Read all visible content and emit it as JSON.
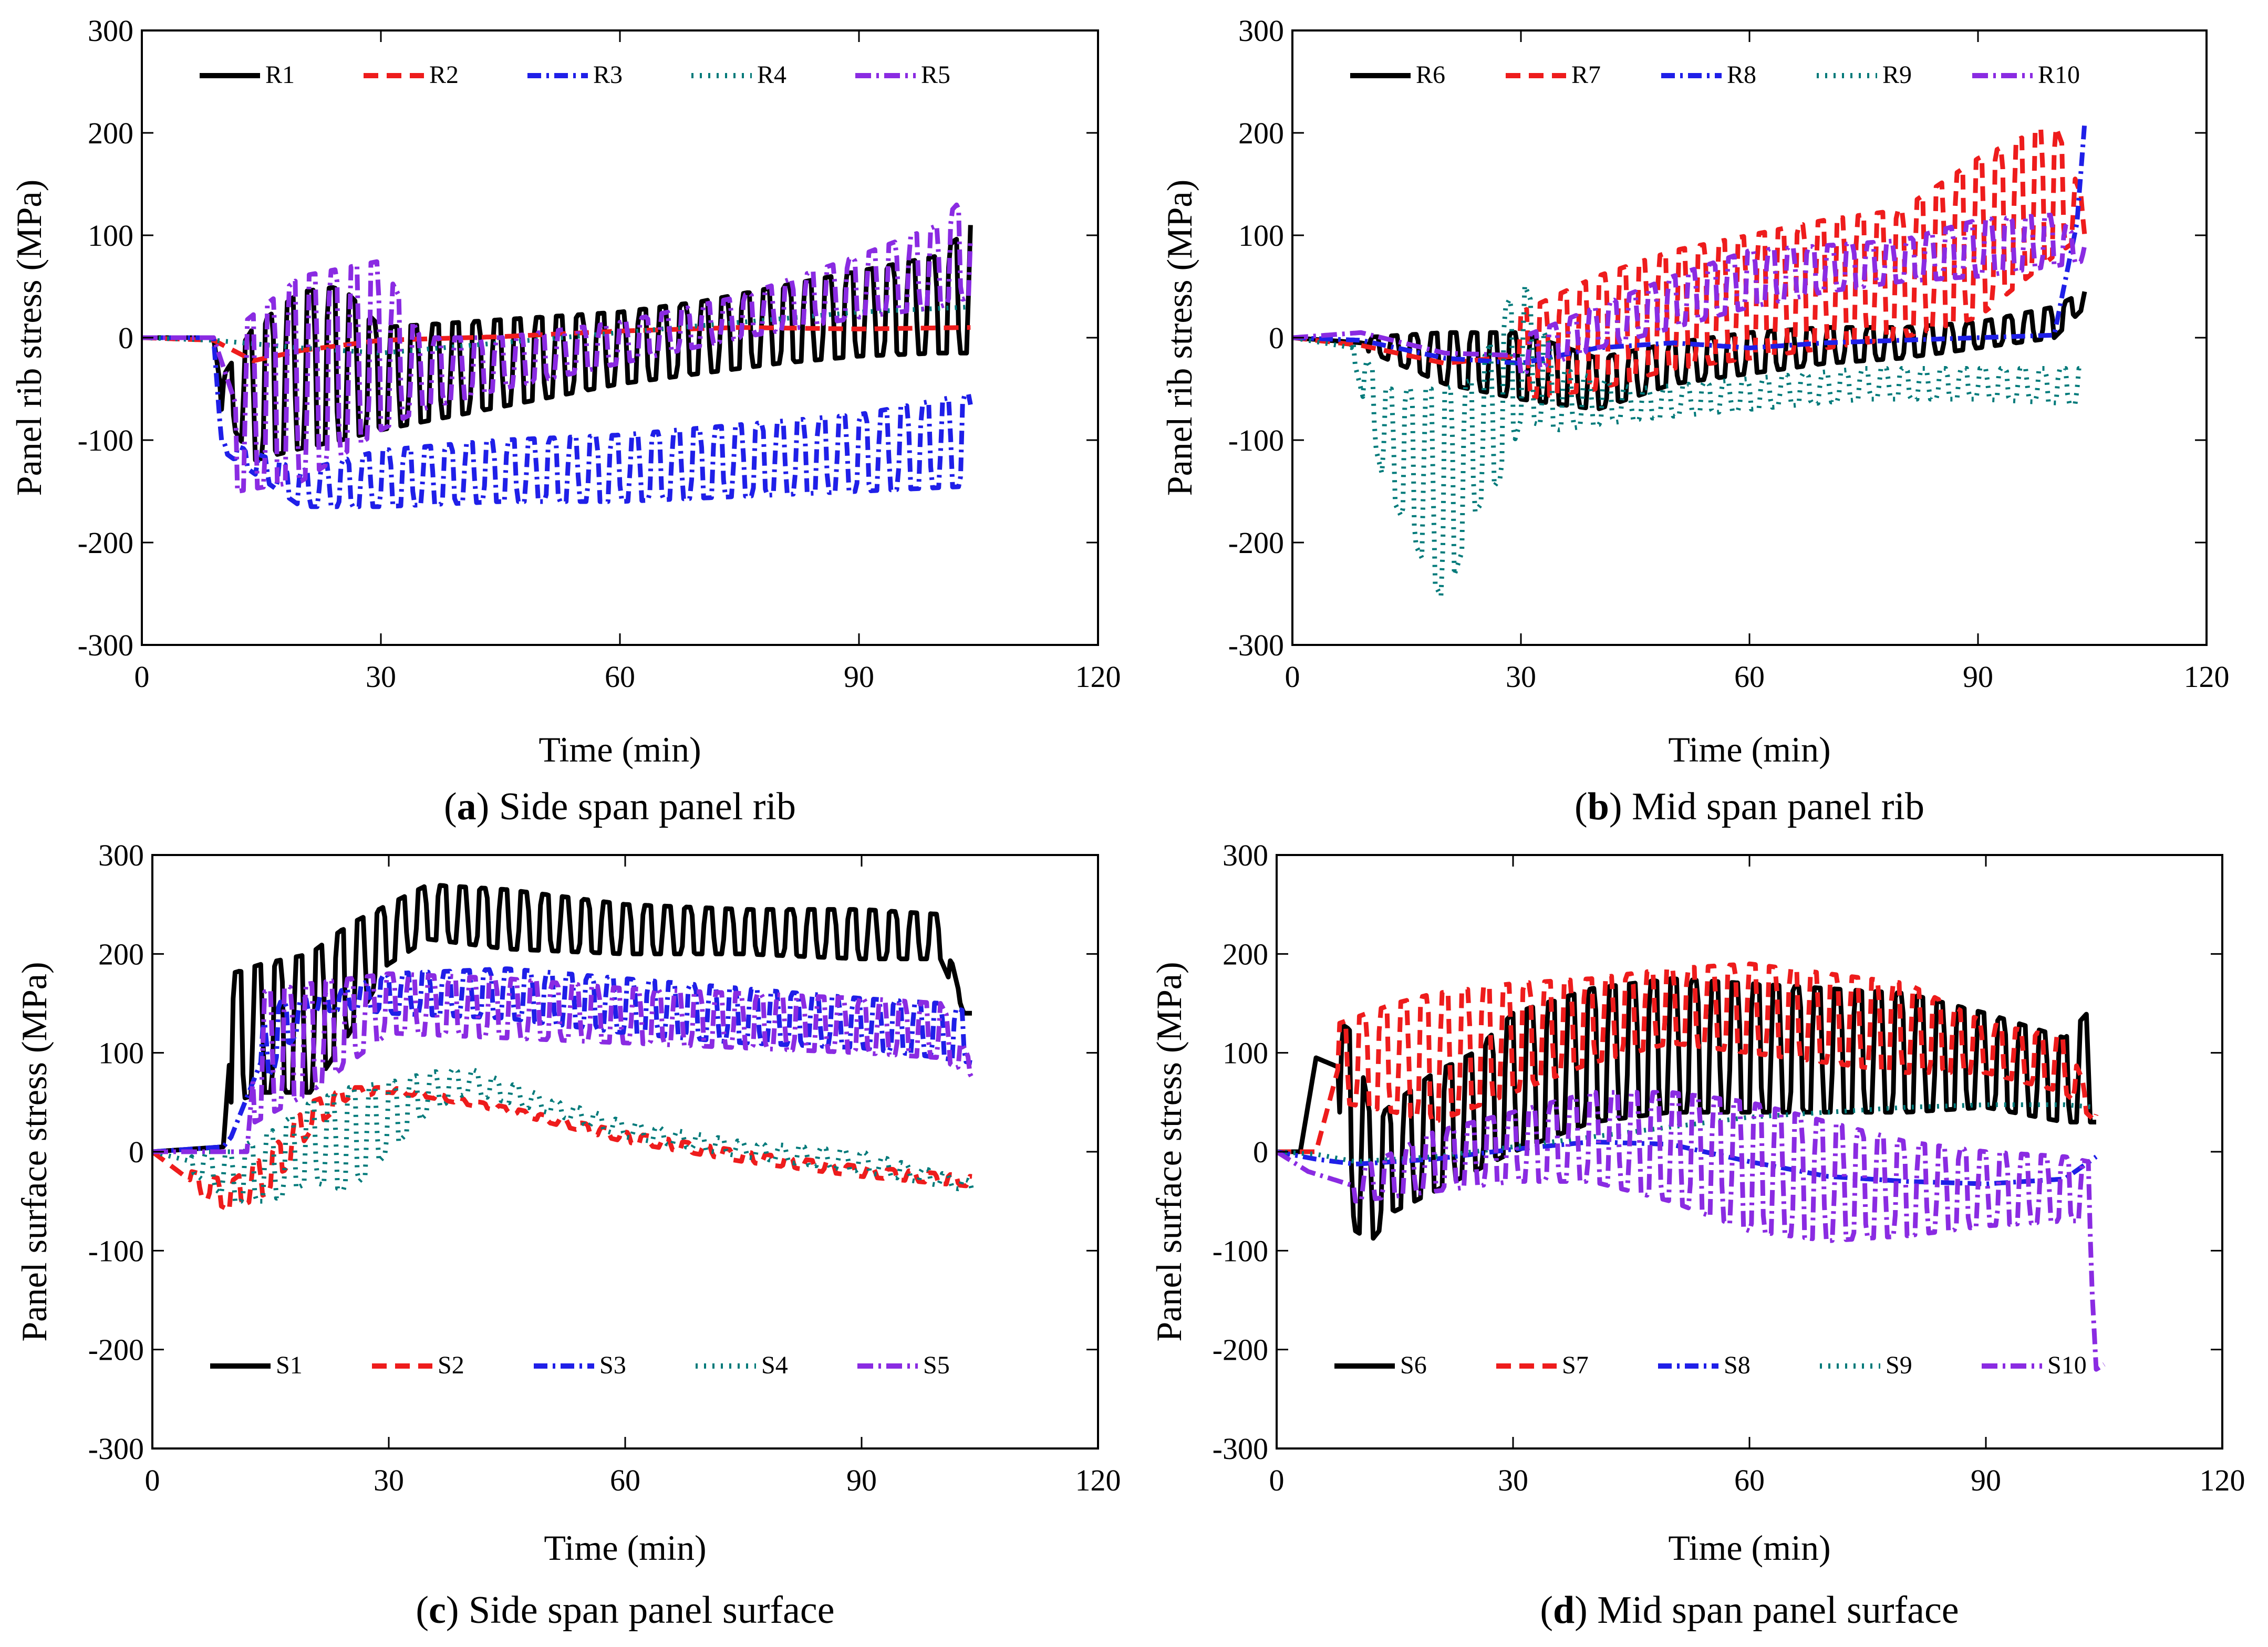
{
  "chart_data": [
    {
      "type": "line",
      "panel_id": "a",
      "caption_letter": "a",
      "caption_text": " Side span panel rib",
      "xlabel": "Time (min)",
      "ylabel": "Panel rib stress (MPa)",
      "xlim": [
        0,
        120
      ],
      "ylim": [
        -300,
        300
      ],
      "xticks": [
        0,
        30,
        60,
        90,
        120
      ],
      "yticks": [
        -300,
        -200,
        -100,
        0,
        100,
        200,
        300
      ],
      "legend_position": "top",
      "grid": false,
      "series": [
        {
          "name": "R1",
          "color": "#000000",
          "dash": "solid",
          "x": [
            0,
            9,
            10,
            14,
            20,
            25,
            30,
            40,
            50,
            60,
            70,
            80,
            90,
            100,
            104
          ],
          "base": [
            0,
            0,
            -70,
            -120,
            -108,
            -100,
            -90,
            -75,
            -60,
            -45,
            -35,
            -25,
            -18,
            -15,
            -15
          ],
          "peak": [
            0,
            0,
            -40,
            10,
            45,
            50,
            10,
            15,
            20,
            25,
            35,
            50,
            65,
            80,
            110
          ],
          "osc_start": 10
        },
        {
          "name": "R2",
          "color": "#ee1c1c",
          "dash": "28,16",
          "x": [
            0,
            9,
            14,
            20,
            30,
            45,
            60,
            75,
            90,
            104
          ],
          "base": [
            0,
            -5,
            -25,
            -15,
            -5,
            0,
            5,
            8,
            5,
            5
          ],
          "peak": [
            0,
            0,
            -20,
            -10,
            0,
            2,
            8,
            12,
            12,
            15
          ],
          "osc_start": 200
        },
        {
          "name": "R3",
          "color": "#1f1fe8",
          "dash": "26,10,5,10",
          "x": [
            0,
            9,
            10,
            20,
            30,
            45,
            60,
            75,
            90,
            104
          ],
          "base": [
            0,
            0,
            -110,
            -165,
            -165,
            -160,
            -160,
            -155,
            -150,
            -145
          ],
          "peak": [
            0,
            0,
            -100,
            -130,
            -110,
            -100,
            -95,
            -85,
            -75,
            -55
          ],
          "osc_start": 10
        },
        {
          "name": "R4",
          "color": "#007a7a",
          "dash": "4,12",
          "x": [
            0,
            9,
            20,
            30,
            45,
            60,
            75,
            90,
            104
          ],
          "base": [
            0,
            -5,
            -15,
            -20,
            -10,
            0,
            10,
            20,
            25
          ],
          "peak": [
            0,
            0,
            -5,
            -10,
            0,
            10,
            20,
            30,
            35
          ],
          "osc_start": 200
        },
        {
          "name": "R5",
          "color": "#8a2be2",
          "dash": "30,10,5,10",
          "x": [
            0,
            9,
            12,
            20,
            30,
            35,
            45,
            60,
            75,
            90,
            100,
            104
          ],
          "base": [
            0,
            0,
            -150,
            -140,
            -90,
            -70,
            -50,
            -25,
            0,
            20,
            30,
            40
          ],
          "peak": [
            0,
            0,
            10,
            60,
            75,
            0,
            0,
            15,
            40,
            80,
            110,
            145
          ],
          "osc_start": 12
        }
      ]
    },
    {
      "type": "line",
      "panel_id": "b",
      "caption_letter": "b",
      "caption_text": " Mid span panel rib",
      "xlabel": "Time (min)",
      "ylabel": "Panel rib stress (MPa)",
      "xlim": [
        0,
        120
      ],
      "ylim": [
        -300,
        300
      ],
      "xticks": [
        0,
        30,
        60,
        90,
        120
      ],
      "yticks": [
        -300,
        -200,
        -100,
        0,
        100,
        200,
        300
      ],
      "legend_position": "top",
      "grid": false,
      "series": [
        {
          "name": "R6",
          "color": "#000000",
          "dash": "solid",
          "x": [
            0,
            9,
            20,
            30,
            40,
            50,
            60,
            70,
            80,
            90,
            100,
            104
          ],
          "base": [
            0,
            -10,
            -45,
            -60,
            -70,
            -45,
            -35,
            -25,
            -20,
            -10,
            0,
            30
          ],
          "peak": [
            0,
            0,
            5,
            5,
            -20,
            -5,
            5,
            10,
            10,
            15,
            30,
            45
          ],
          "osc_start": 10
        },
        {
          "name": "R7",
          "color": "#ee1c1c",
          "dash": "28,16",
          "x": [
            0,
            9,
            20,
            30,
            40,
            50,
            60,
            70,
            80,
            90,
            100,
            104
          ],
          "base": [
            0,
            -15,
            -50,
            -60,
            -50,
            -30,
            -20,
            -10,
            0,
            20,
            80,
            100
          ],
          "peak": [
            0,
            0,
            0,
            25,
            60,
            85,
            100,
            115,
            125,
            175,
            210,
            130
          ],
          "osc_start": 30
        },
        {
          "name": "R8",
          "color": "#1f1fe8",
          "dash": "26,10,5,10",
          "x": [
            0,
            9,
            20,
            30,
            40,
            50,
            60,
            70,
            80,
            90,
            100,
            103,
            104
          ],
          "base": [
            0,
            -5,
            -25,
            -30,
            -20,
            -15,
            -20,
            -15,
            -10,
            -5,
            0,
            -10,
            210
          ],
          "peak": [
            0,
            0,
            -15,
            -20,
            0,
            5,
            0,
            5,
            5,
            5,
            5,
            235,
            210
          ],
          "osc_start": 200
        },
        {
          "name": "R9",
          "color": "#007a7a",
          "dash": "4,12",
          "x": [
            0,
            8,
            12,
            16,
            20,
            24,
            28,
            30,
            35,
            45,
            60,
            75,
            90,
            104
          ],
          "base": [
            0,
            -20,
            -140,
            -200,
            -260,
            -170,
            -130,
            -80,
            -90,
            -80,
            -70,
            -60,
            -60,
            -65
          ],
          "peak": [
            0,
            0,
            -50,
            -50,
            -50,
            -40,
            30,
            60,
            -30,
            -50,
            -40,
            -30,
            -30,
            -30
          ],
          "osc_start": 8
        },
        {
          "name": "R10",
          "color": "#8a2be2",
          "dash": "30,10,5,10",
          "x": [
            0,
            9,
            20,
            30,
            40,
            50,
            60,
            70,
            80,
            90,
            100,
            104
          ],
          "base": [
            0,
            0,
            -40,
            -35,
            -10,
            10,
            30,
            45,
            55,
            60,
            70,
            75
          ],
          "peak": [
            0,
            10,
            10,
            0,
            30,
            60,
            85,
            90,
            95,
            115,
            120,
            90
          ],
          "osc_start": 30
        }
      ]
    },
    {
      "type": "line",
      "panel_id": "c",
      "caption_letter": "c",
      "caption_text": " Side span panel surface",
      "xlabel": "Time (min)",
      "ylabel": "Panel surface stress (MPa)",
      "xlim": [
        0,
        120
      ],
      "ylim": [
        -300,
        300
      ],
      "xticks": [
        0,
        30,
        60,
        90,
        120
      ],
      "yticks": [
        -300,
        -200,
        -100,
        0,
        100,
        200,
        300
      ],
      "legend_position": "bottom",
      "grid": false,
      "series": [
        {
          "name": "S1",
          "color": "#000000",
          "dash": "solid",
          "x": [
            0,
            9,
            10,
            14,
            20,
            25,
            30,
            35,
            45,
            60,
            75,
            90,
            100,
            103,
            104
          ],
          "base": [
            0,
            5,
            50,
            60,
            60,
            120,
            190,
            215,
            205,
            200,
            200,
            195,
            195,
            140,
            140
          ],
          "peak": [
            0,
            5,
            180,
            190,
            200,
            230,
            250,
            270,
            265,
            250,
            245,
            245,
            240,
            140,
            140
          ],
          "osc_start": 10
        },
        {
          "name": "S2",
          "color": "#ee1c1c",
          "dash": "28,16",
          "x": [
            0,
            5,
            10,
            15,
            20,
            25,
            30,
            35,
            45,
            60,
            75,
            90,
            104
          ],
          "base": [
            0,
            -40,
            -60,
            -40,
            20,
            55,
            60,
            55,
            40,
            10,
            -10,
            -25,
            -35
          ],
          "peak": [
            0,
            -20,
            -30,
            0,
            50,
            65,
            65,
            60,
            45,
            20,
            0,
            -15,
            -25
          ],
          "osc_start": 5
        },
        {
          "name": "S3",
          "color": "#1f1fe8",
          "dash": "26,10,5,10",
          "x": [
            0,
            9,
            10,
            15,
            20,
            25,
            30,
            45,
            60,
            75,
            90,
            100,
            104
          ],
          "base": [
            0,
            5,
            10,
            80,
            140,
            145,
            140,
            135,
            120,
            110,
            105,
            95,
            90
          ],
          "peak": [
            0,
            5,
            20,
            150,
            155,
            165,
            180,
            185,
            175,
            165,
            155,
            150,
            140
          ],
          "osc_start": 14
        },
        {
          "name": "S4",
          "color": "#007a7a",
          "dash": "4,12",
          "x": [
            0,
            5,
            10,
            15,
            20,
            25,
            30,
            35,
            40,
            50,
            60,
            75,
            90,
            104
          ],
          "base": [
            0,
            -20,
            -50,
            -50,
            -30,
            -40,
            0,
            40,
            60,
            40,
            15,
            -5,
            -20,
            -40
          ],
          "peak": [
            0,
            0,
            0,
            20,
            50,
            65,
            70,
            80,
            85,
            55,
            30,
            10,
            0,
            -30
          ],
          "osc_start": 5
        },
        {
          "name": "S5",
          "color": "#8a2be2",
          "dash": "30,10,5,10",
          "x": [
            0,
            12,
            13,
            20,
            25,
            30,
            45,
            60,
            75,
            90,
            100,
            104
          ],
          "base": [
            0,
            0,
            30,
            60,
            90,
            120,
            115,
            110,
            105,
            100,
            95,
            75
          ],
          "peak": [
            0,
            0,
            160,
            170,
            175,
            180,
            175,
            165,
            160,
            155,
            150,
            90
          ],
          "osc_start": 13
        }
      ]
    },
    {
      "type": "line",
      "panel_id": "d",
      "caption_letter": "d",
      "caption_text": " Mid span panel surface",
      "xlabel": "Time (min)",
      "ylabel": "Panel surface stress (MPa)",
      "xlim": [
        0,
        120
      ],
      "ylim": [
        -300,
        300
      ],
      "xticks": [
        0,
        30,
        60,
        90,
        120
      ],
      "yticks": [
        -300,
        -200,
        -100,
        0,
        100,
        200,
        300
      ],
      "legend_position": "bottom",
      "grid": false,
      "series": [
        {
          "name": "S6",
          "color": "#000000",
          "dash": "solid",
          "x": [
            0,
            3,
            5,
            8,
            10,
            12,
            15,
            20,
            25,
            30,
            40,
            50,
            60,
            70,
            80,
            90,
            100,
            104
          ],
          "base": [
            0,
            0,
            80,
            40,
            -80,
            -90,
            -60,
            -40,
            -20,
            0,
            30,
            40,
            40,
            40,
            40,
            45,
            30,
            30
          ],
          "peak": [
            0,
            0,
            110,
            130,
            120,
            30,
            50,
            80,
            100,
            140,
            165,
            175,
            170,
            165,
            160,
            140,
            115,
            150
          ],
          "osc_start": 8
        },
        {
          "name": "S7",
          "color": "#ee1c1c",
          "dash": "28,16",
          "x": [
            0,
            5,
            8,
            15,
            20,
            30,
            40,
            50,
            60,
            70,
            80,
            90,
            100,
            104
          ],
          "base": [
            0,
            0,
            50,
            40,
            30,
            60,
            90,
            110,
            100,
            90,
            80,
            80,
            60,
            30
          ],
          "peak": [
            0,
            0,
            130,
            150,
            160,
            170,
            175,
            185,
            190,
            180,
            170,
            130,
            115,
            40
          ],
          "osc_start": 8
        },
        {
          "name": "S8",
          "color": "#1f1fe8",
          "dash": "26,10,5,10",
          "x": [
            0,
            5,
            10,
            20,
            30,
            40,
            50,
            60,
            70,
            80,
            90,
            100,
            104
          ],
          "base": [
            0,
            -15,
            -20,
            -15,
            -5,
            0,
            -10,
            -30,
            -40,
            -40,
            -40,
            -35,
            -5
          ],
          "peak": [
            0,
            0,
            -5,
            0,
            10,
            20,
            25,
            10,
            -10,
            -20,
            -25,
            -20,
            -5
          ],
          "osc_start": 200
        },
        {
          "name": "S9",
          "color": "#007a7a",
          "dash": "4,12",
          "x": [
            0,
            5,
            10,
            20,
            30,
            40,
            50,
            60,
            70,
            80,
            90,
            100,
            104
          ],
          "base": [
            0,
            -5,
            -15,
            -10,
            0,
            10,
            20,
            30,
            35,
            40,
            40,
            40,
            40
          ],
          "peak": [
            0,
            0,
            -5,
            0,
            10,
            20,
            30,
            40,
            45,
            50,
            55,
            55,
            50
          ],
          "osc_start": 200
        },
        {
          "name": "S10",
          "color": "#8a2be2",
          "dash": "30,10,5,10",
          "x": [
            0,
            4,
            10,
            20,
            30,
            40,
            50,
            60,
            70,
            80,
            90,
            100,
            103,
            104,
            105
          ],
          "base": [
            0,
            -40,
            -50,
            -40,
            -30,
            -30,
            -50,
            -80,
            -90,
            -85,
            -75,
            -70,
            -70,
            -220,
            -215
          ],
          "peak": [
            0,
            0,
            -20,
            20,
            40,
            60,
            60,
            50,
            30,
            10,
            0,
            -5,
            -10,
            -220,
            -215
          ],
          "osc_start": 10
        }
      ]
    }
  ]
}
